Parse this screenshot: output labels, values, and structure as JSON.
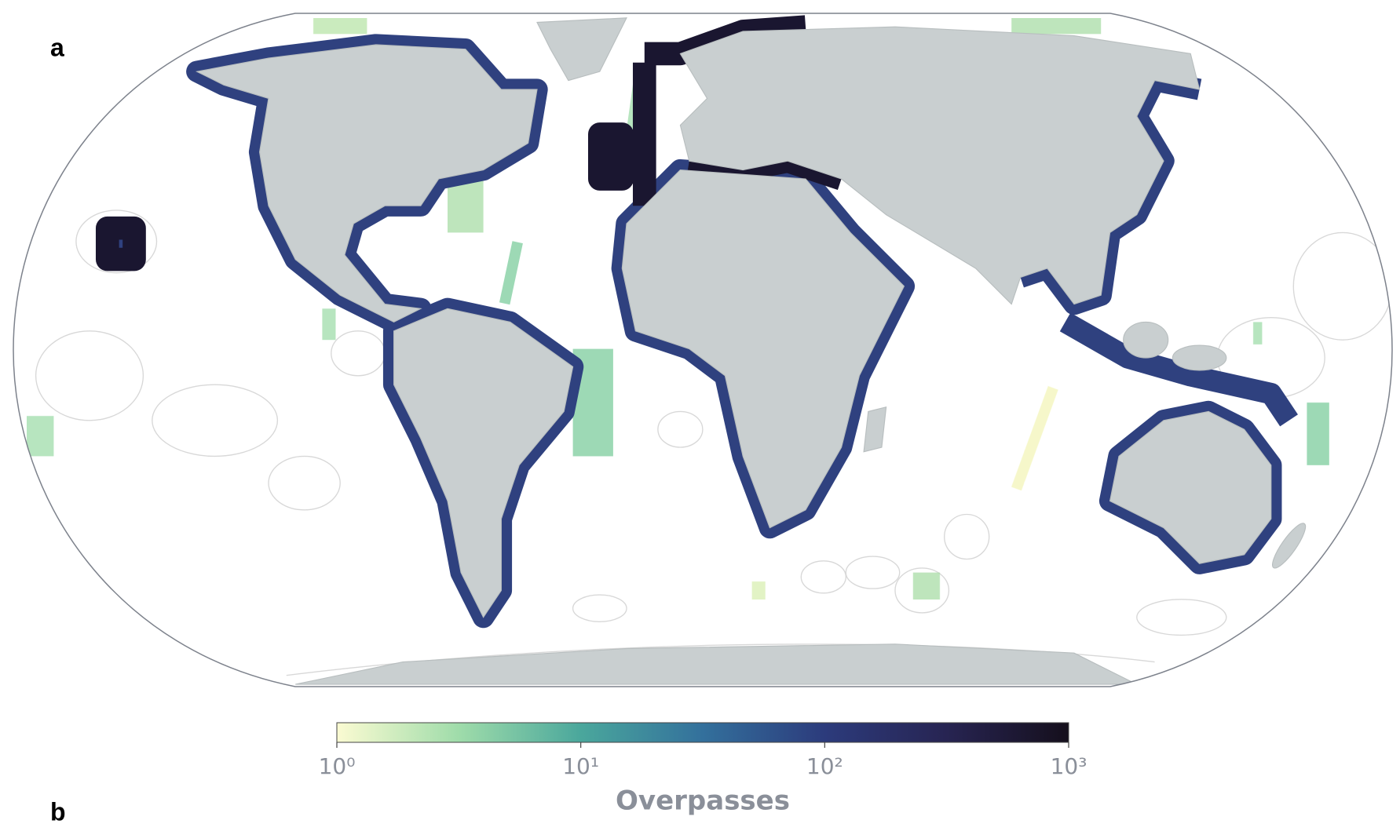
{
  "panels": [
    "a",
    "b"
  ],
  "colorbar": {
    "label": "Overpasses",
    "scale": "log",
    "lim": [
      1,
      1000
    ],
    "ticks": [
      {
        "value": 1,
        "label": "10⁰"
      },
      {
        "value": 10,
        "label": "10¹"
      },
      {
        "value": 100,
        "label": "10²"
      },
      {
        "value": 1000,
        "label": "10³"
      }
    ],
    "colors": [
      "#fbfbd2",
      "#9fdcaa",
      "#4aa79c",
      "#33709c",
      "#2c3b7c",
      "#272452",
      "#150f1c"
    ]
  }
}
